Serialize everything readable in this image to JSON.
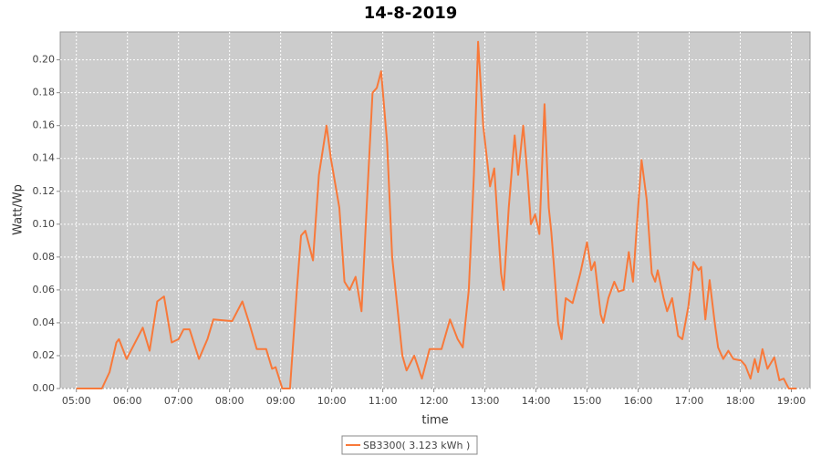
{
  "chart_data": {
    "type": "line",
    "title": "14-8-2019",
    "x_label": "time",
    "y_label": "Watt/Wp",
    "xlim": [
      "04:41",
      "19:22"
    ],
    "xticks": [
      "05:00",
      "06:00",
      "07:00",
      "08:00",
      "09:00",
      "10:00",
      "11:00",
      "12:00",
      "13:00",
      "14:00",
      "15:00",
      "16:00",
      "17:00",
      "18:00",
      "19:00"
    ],
    "ylim": [
      0,
      0.217
    ],
    "yticks": [
      {
        "value": 0,
        "label": "0.00"
      },
      {
        "value": 0.02,
        "label": "0.02"
      },
      {
        "value": 0.04,
        "label": "0.04"
      },
      {
        "value": 0.06,
        "label": "0.06"
      },
      {
        "value": 0.08,
        "label": "0.08"
      },
      {
        "value": 0.1,
        "label": "0.10"
      },
      {
        "value": 0.12,
        "label": "0.12"
      },
      {
        "value": 0.14,
        "label": "0.14"
      },
      {
        "value": 0.16,
        "label": "0.16"
      },
      {
        "value": 0.18,
        "label": "0.18"
      },
      {
        "value": 0.2,
        "label": "0.20"
      }
    ],
    "grid": true,
    "legend": "bottom",
    "x": [
      "05:00",
      "05:30",
      "05:39",
      "05:47",
      "05:50",
      "05:59",
      "06:18",
      "06:26",
      "06:35",
      "06:43",
      "06:52",
      "07:00",
      "07:06",
      "07:13",
      "07:24",
      "07:34",
      "07:41",
      "08:03",
      "08:15",
      "08:23",
      "08:32",
      "08:43",
      "08:50",
      "08:54",
      "09:02",
      "09:11",
      "09:19",
      "09:24",
      "09:29",
      "09:38",
      "09:45",
      "09:54",
      "09:59",
      "10:09",
      "10:15",
      "10:21",
      "10:28",
      "10:35",
      "10:42",
      "10:48",
      "10:53",
      "10:58",
      "11:05",
      "11:11",
      "11:17",
      "11:23",
      "11:28",
      "11:37",
      "11:46",
      "11:55",
      "12:09",
      "12:19",
      "12:28",
      "12:34",
      "12:41",
      "12:47",
      "12:52",
      "12:58",
      "13:06",
      "13:11",
      "13:19",
      "13:22",
      "13:28",
      "13:35",
      "13:39",
      "13:45",
      "13:50",
      "13:54",
      "13:59",
      "14:04",
      "14:10",
      "14:15",
      "14:18",
      "14:21",
      "14:26",
      "14:30",
      "14:35",
      "14:43",
      "14:52",
      "15:00",
      "15:05",
      "15:09",
      "15:16",
      "15:19",
      "15:25",
      "15:32",
      "15:37",
      "15:43",
      "15:49",
      "15:54",
      "16:00",
      "16:04",
      "16:10",
      "16:16",
      "16:20",
      "16:23",
      "16:30",
      "16:34",
      "16:40",
      "16:47",
      "16:52",
      "16:59",
      "17:05",
      "17:11",
      "17:14",
      "17:19",
      "17:24",
      "17:30",
      "17:34",
      "17:40",
      "17:46",
      "17:52",
      "18:01",
      "18:06",
      "18:12",
      "18:17",
      "18:21",
      "18:26",
      "18:32",
      "18:40",
      "18:46",
      "18:51",
      "18:57",
      "19:06"
    ],
    "series": [
      {
        "name": "SB3300( 3.123 kWh )",
        "color": "#f8793a",
        "values": [
          0,
          0,
          0.01,
          0.028,
          0.03,
          0.018,
          0.037,
          0.023,
          0.053,
          0.056,
          0.028,
          0.03,
          0.036,
          0.036,
          0.018,
          0.03,
          0.042,
          0.041,
          0.053,
          0.04,
          0.024,
          0.024,
          0.012,
          0.013,
          0,
          0,
          0.06,
          0.093,
          0.096,
          0.078,
          0.13,
          0.16,
          0.14,
          0.11,
          0.065,
          0.06,
          0.068,
          0.047,
          0.12,
          0.18,
          0.183,
          0.193,
          0.15,
          0.08,
          0.05,
          0.02,
          0.011,
          0.02,
          0.006,
          0.024,
          0.024,
          0.042,
          0.03,
          0.025,
          0.06,
          0.13,
          0.211,
          0.16,
          0.123,
          0.134,
          0.07,
          0.06,
          0.11,
          0.154,
          0.13,
          0.16,
          0.13,
          0.1,
          0.106,
          0.094,
          0.173,
          0.11,
          0.095,
          0.075,
          0.04,
          0.03,
          0.055,
          0.052,
          0.07,
          0.089,
          0.072,
          0.077,
          0.045,
          0.04,
          0.055,
          0.065,
          0.059,
          0.06,
          0.083,
          0.065,
          0.11,
          0.139,
          0.115,
          0.07,
          0.065,
          0.072,
          0.055,
          0.047,
          0.055,
          0.032,
          0.03,
          0.05,
          0.077,
          0.072,
          0.074,
          0.042,
          0.066,
          0.04,
          0.025,
          0.018,
          0.023,
          0.018,
          0.017,
          0.014,
          0.006,
          0.018,
          0.01,
          0.024,
          0.012,
          0.019,
          0.005,
          0.006,
          0,
          0
        ]
      }
    ]
  }
}
